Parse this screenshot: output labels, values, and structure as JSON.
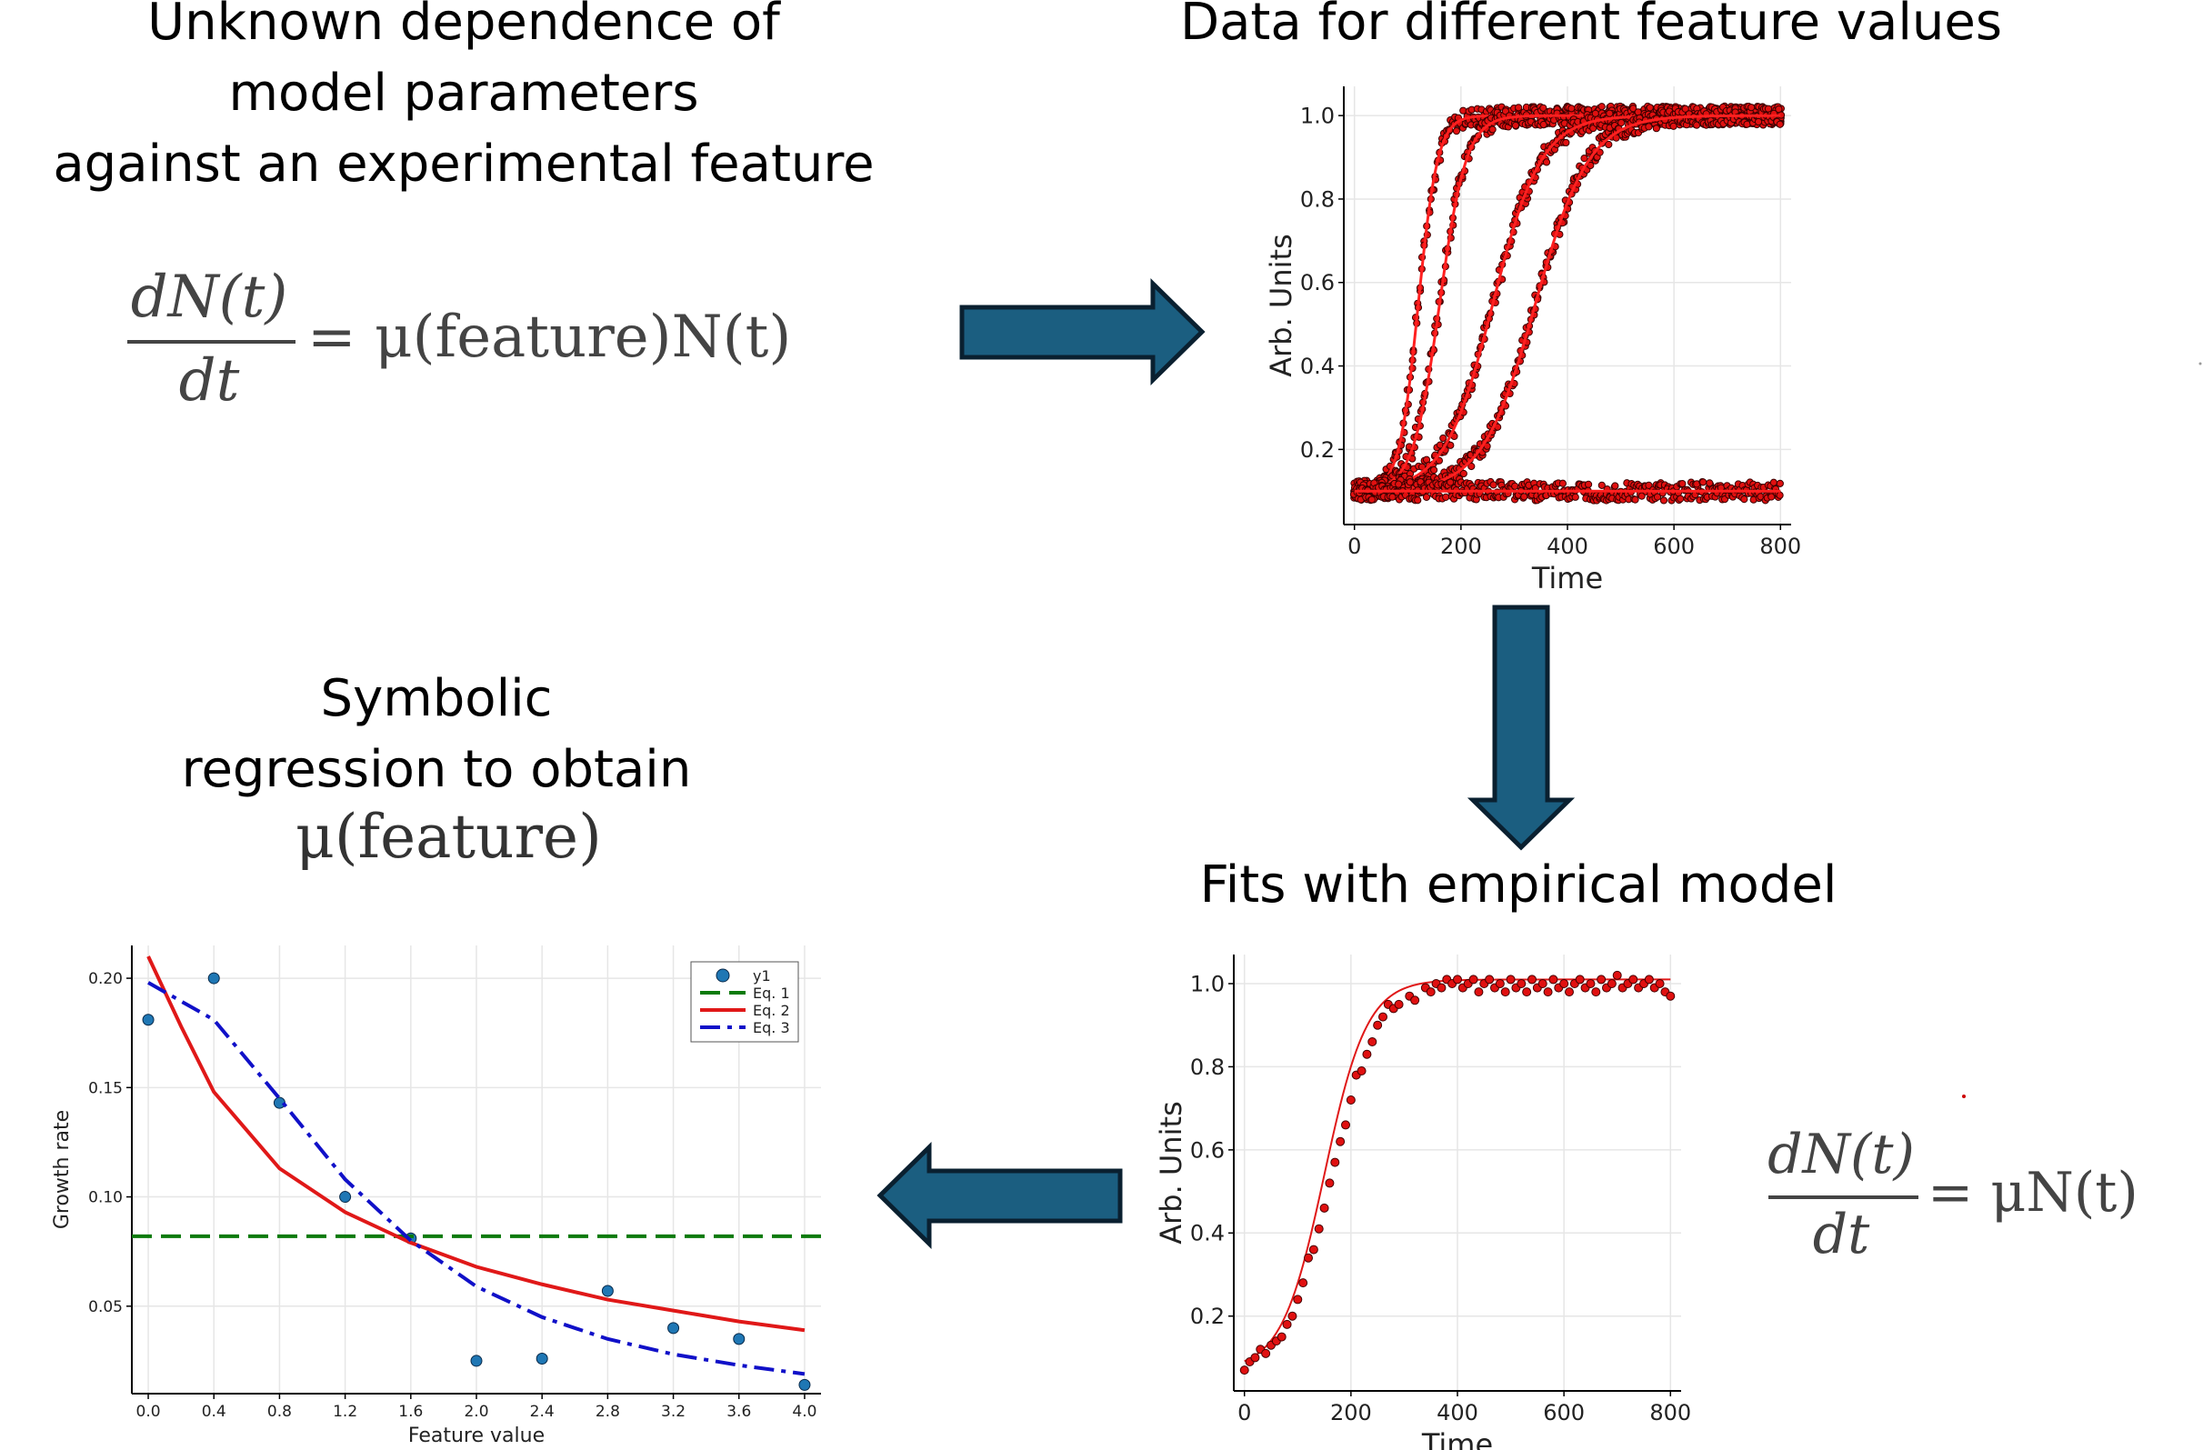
{
  "titles": {
    "top_left": [
      "Unknown dependence of",
      "model parameters",
      "against an experimental feature"
    ],
    "top_right": "Data for different feature values",
    "bottom_left": [
      "Symbolic",
      "regression to obtain"
    ],
    "bottom_left_math": "μ(feature)",
    "bottom_right": "Fits with empirical model"
  },
  "equations": {
    "top_left": {
      "numerator": "dN(t)",
      "denominator": "dt",
      "rhs": "= μ(feature)N(t)"
    },
    "bottom_right": {
      "numerator": "dN(t)",
      "denominator": "dt",
      "rhs": "= μN(t)"
    }
  },
  "arrow_color": "#1b5e80",
  "chart_data": [
    {
      "type": "scatter",
      "name_hint": "top-right",
      "xlabel": "Time",
      "ylabel": "Arb. Units",
      "xlim": [
        -20,
        820
      ],
      "ylim": [
        0.02,
        1.07
      ],
      "xticks": [
        "0",
        "200",
        "400",
        "600",
        "800"
      ],
      "yticks": [
        "0.2",
        "0.4",
        "0.6",
        "0.8",
        "1.0"
      ],
      "point_color": "#e01010",
      "series": [
        {
          "midpoint": 120,
          "rate": 0.055,
          "low": 0.1,
          "high": 1.0
        },
        {
          "midpoint": 160,
          "rate": 0.04,
          "low": 0.1,
          "high": 1.0
        },
        {
          "midpoint": 260,
          "rate": 0.022,
          "low": 0.1,
          "high": 1.0
        },
        {
          "midpoint": 340,
          "rate": 0.02,
          "low": 0.1,
          "high": 1.0
        },
        {
          "midpoint": null,
          "low": 0.1,
          "high": 0.1
        }
      ]
    },
    {
      "type": "scatter",
      "name_hint": "bottom-right",
      "xlabel": "Time",
      "ylabel": "Arb. Units",
      "xlim": [
        -20,
        820
      ],
      "ylim": [
        0.02,
        1.07
      ],
      "xticks": [
        "0",
        "200",
        "400",
        "600",
        "800"
      ],
      "yticks": [
        "0.2",
        "0.4",
        "0.6",
        "0.8",
        "1.0"
      ],
      "fit": {
        "midpoint": 150,
        "rate": 0.025,
        "low": 0.07,
        "high": 1.01
      },
      "points": [
        [
          0,
          0.07
        ],
        [
          10,
          0.09
        ],
        [
          20,
          0.1
        ],
        [
          30,
          0.12
        ],
        [
          40,
          0.11
        ],
        [
          50,
          0.13
        ],
        [
          60,
          0.14
        ],
        [
          70,
          0.15
        ],
        [
          80,
          0.18
        ],
        [
          90,
          0.2
        ],
        [
          100,
          0.24
        ],
        [
          110,
          0.28
        ],
        [
          120,
          0.34
        ],
        [
          130,
          0.36
        ],
        [
          140,
          0.41
        ],
        [
          150,
          0.46
        ],
        [
          160,
          0.52
        ],
        [
          170,
          0.57
        ],
        [
          180,
          0.62
        ],
        [
          190,
          0.66
        ],
        [
          200,
          0.72
        ],
        [
          210,
          0.78
        ],
        [
          220,
          0.79
        ],
        [
          230,
          0.83
        ],
        [
          240,
          0.86
        ],
        [
          250,
          0.9
        ],
        [
          260,
          0.92
        ],
        [
          270,
          0.95
        ],
        [
          280,
          0.94
        ],
        [
          290,
          0.95
        ],
        [
          310,
          0.97
        ],
        [
          320,
          0.96
        ],
        [
          340,
          0.99
        ],
        [
          350,
          0.98
        ],
        [
          360,
          1.0
        ],
        [
          370,
          0.99
        ],
        [
          380,
          1.01
        ],
        [
          390,
          1.0
        ],
        [
          400,
          1.01
        ],
        [
          410,
          0.99
        ],
        [
          420,
          1.0
        ],
        [
          430,
          1.01
        ],
        [
          440,
          0.98
        ],
        [
          450,
          1.0
        ],
        [
          460,
          1.01
        ],
        [
          470,
          0.99
        ],
        [
          480,
          1.0
        ],
        [
          490,
          0.98
        ],
        [
          500,
          1.01
        ],
        [
          510,
          0.99
        ],
        [
          520,
          1.0
        ],
        [
          530,
          0.98
        ],
        [
          540,
          1.01
        ],
        [
          550,
          0.99
        ],
        [
          560,
          1.0
        ],
        [
          570,
          0.98
        ],
        [
          580,
          1.01
        ],
        [
          590,
          0.99
        ],
        [
          600,
          1.0
        ],
        [
          610,
          0.98
        ],
        [
          620,
          1.0
        ],
        [
          630,
          1.01
        ],
        [
          640,
          0.99
        ],
        [
          650,
          1.0
        ],
        [
          660,
          0.98
        ],
        [
          670,
          1.01
        ],
        [
          680,
          0.99
        ],
        [
          690,
          1.0
        ],
        [
          700,
          1.02
        ],
        [
          710,
          0.99
        ],
        [
          720,
          1.0
        ],
        [
          730,
          1.01
        ],
        [
          740,
          0.99
        ],
        [
          750,
          1.0
        ],
        [
          760,
          1.01
        ],
        [
          770,
          0.99
        ],
        [
          780,
          1.0
        ],
        [
          790,
          0.98
        ],
        [
          800,
          0.97
        ]
      ]
    },
    {
      "type": "line",
      "name_hint": "bottom-left",
      "xlabel": "Feature value",
      "ylabel": "Growth rate",
      "xlim": [
        -0.1,
        4.1
      ],
      "ylim": [
        0.01,
        0.215
      ],
      "xticks": [
        "0.0",
        "0.4",
        "0.8",
        "1.2",
        "1.6",
        "2.0",
        "2.4",
        "2.8",
        "3.2",
        "3.6",
        "4.0"
      ],
      "yticks": [
        "0.05",
        "0.10",
        "0.15",
        "0.20"
      ],
      "legend_position": "top-right",
      "series": [
        {
          "name": "y1",
          "kind": "scatter",
          "color": "#1f77b4",
          "points": [
            [
              0.0,
              0.181
            ],
            [
              0.4,
              0.2
            ],
            [
              0.8,
              0.143
            ],
            [
              1.2,
              0.1
            ],
            [
              1.6,
              0.081
            ],
            [
              2.0,
              0.025
            ],
            [
              2.4,
              0.026
            ],
            [
              2.8,
              0.057
            ],
            [
              3.2,
              0.04
            ],
            [
              3.6,
              0.035
            ],
            [
              4.0,
              0.014
            ]
          ]
        },
        {
          "name": "Eq. 1",
          "kind": "dashed",
          "color": "#0a7a0a",
          "points": [
            [
              -0.1,
              0.082
            ],
            [
              4.1,
              0.082
            ]
          ]
        },
        {
          "name": "Eq. 2",
          "kind": "solid",
          "color": "#e01818",
          "points": [
            [
              0.0,
              0.21
            ],
            [
              0.2,
              0.178
            ],
            [
              0.4,
              0.148
            ],
            [
              0.8,
              0.113
            ],
            [
              1.2,
              0.093
            ],
            [
              1.6,
              0.079
            ],
            [
              2.0,
              0.068
            ],
            [
              2.4,
              0.06
            ],
            [
              2.8,
              0.053
            ],
            [
              3.2,
              0.048
            ],
            [
              3.6,
              0.043
            ],
            [
              4.0,
              0.039
            ]
          ]
        },
        {
          "name": "Eq. 3",
          "kind": "dashdot",
          "color": "#1010c8",
          "points": [
            [
              0.0,
              0.198
            ],
            [
              0.4,
              0.181
            ],
            [
              0.8,
              0.145
            ],
            [
              1.2,
              0.108
            ],
            [
              1.6,
              0.08
            ],
            [
              2.0,
              0.059
            ],
            [
              2.4,
              0.045
            ],
            [
              2.8,
              0.035
            ],
            [
              3.2,
              0.028
            ],
            [
              3.6,
              0.023
            ],
            [
              4.0,
              0.019
            ]
          ]
        }
      ]
    }
  ]
}
